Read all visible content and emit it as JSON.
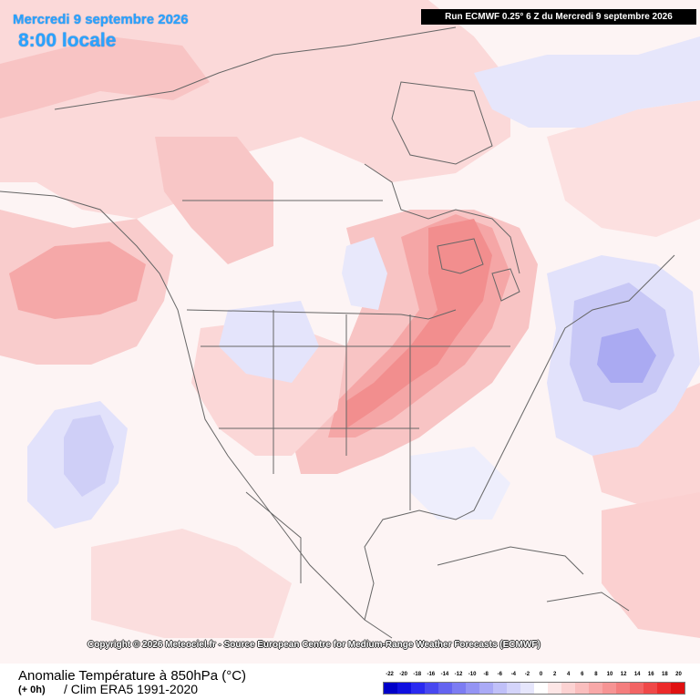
{
  "header": {
    "date_title": "Mercredi 9 septembre 2026",
    "time_title": "8:00 locale",
    "run_info": "Run ECMWF 0.25° 6 Z du Mercredi 9 septembre 2026"
  },
  "copyright": "Copyright © 2026 Meteociel.fr - Source European Centre for Medium-Range Weather Forecasts (ECMWF)",
  "footer": {
    "title": "Anomalie Température à 850hPa (°C)",
    "offset": "(+ 0h)",
    "clim": "/ Clim ERA5 1991-2020"
  },
  "legend": {
    "labels": [
      "-22",
      "-20",
      "-18",
      "-16",
      "-14",
      "-12",
      "-10",
      "-8",
      "-6",
      "-4",
      "-2",
      "0",
      "2",
      "4",
      "6",
      "8",
      "10",
      "12",
      "14",
      "16",
      "18",
      "20"
    ],
    "colors": [
      "#0000c8",
      "#1010e0",
      "#2a2af0",
      "#4848f0",
      "#6464f0",
      "#7c7cf2",
      "#9494f4",
      "#aaaaf6",
      "#c0c0f8",
      "#d4d4fa",
      "#e6e6fc",
      "#ffffff",
      "#fde6e6",
      "#fcd2d2",
      "#fabebe",
      "#f8a8a8",
      "#f69494",
      "#f47e7e",
      "#f26464",
      "#ef4848",
      "#ec2a2a",
      "#e01010"
    ]
  }
}
